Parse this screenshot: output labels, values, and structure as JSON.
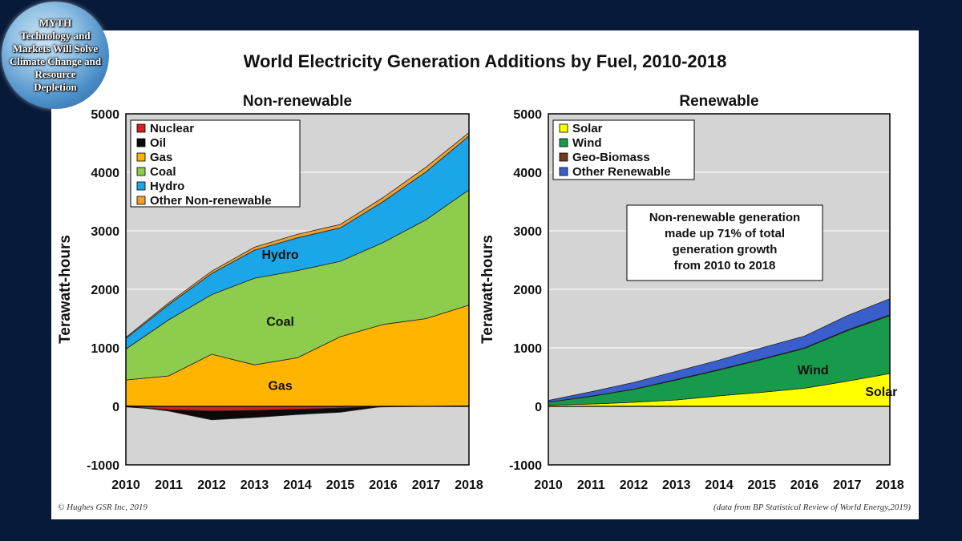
{
  "badge": {
    "lines": [
      "MYTH",
      "Technology and",
      "Markets Will Solve",
      "Climate Change and",
      "Resource",
      "Depletion"
    ]
  },
  "title": "World Electricity Generation Additions by Fuel, 2010-2018",
  "annotation": [
    "Non-renewable generation",
    "made up 71% of total",
    "generation growth",
    "from 2010 to 2018"
  ],
  "footer": {
    "left": "© Hughes GSR Inc, 2019",
    "right": "(data from BP Statistical Review of World Energy,2019)"
  },
  "colors": {
    "nuclear": "#d42020",
    "oil": "#0a0a0a",
    "gas": "#ffb400",
    "coal": "#8dcc4c",
    "hydro": "#1aa6e8",
    "other_nonrenewable": "#f0a030",
    "solar": "#ffff00",
    "wind": "#179a4c",
    "geo_biomass": "#6e3b1e",
    "other_renewable": "#3a5fcd",
    "plot_bg": "#d4d4d4"
  },
  "chart_data": [
    {
      "type": "area",
      "title": "Non-renewable",
      "ylabel": "Terawatt-hours",
      "xlabel": "",
      "x": [
        2010,
        2011,
        2012,
        2013,
        2014,
        2015,
        2016,
        2017,
        2018
      ],
      "ylim": [
        -1000,
        5000
      ],
      "yticks": [
        -1000,
        0,
        1000,
        2000,
        3000,
        4000,
        5000
      ],
      "grid": true,
      "legend_position": "top-left",
      "area_labels": [
        {
          "text": "Hydro",
          "x": 2013.6,
          "y": 2520
        },
        {
          "text": "Coal",
          "x": 2013.6,
          "y": 1380
        },
        {
          "text": "Gas",
          "x": 2013.6,
          "y": 280
        }
      ],
      "series": [
        {
          "name": "Nuclear",
          "key": "nuclear",
          "values": [
            -10,
            -60,
            -80,
            -70,
            -50,
            -30,
            -10,
            0,
            10
          ]
        },
        {
          "name": "Oil",
          "key": "oil",
          "values": [
            10,
            -20,
            -150,
            -120,
            -90,
            -70,
            0,
            0,
            0
          ]
        },
        {
          "name": "Gas",
          "key": "gas",
          "values": [
            440,
            520,
            890,
            710,
            830,
            1190,
            1400,
            1500,
            1720
          ]
        },
        {
          "name": "Coal",
          "key": "coal",
          "values": [
            530,
            960,
            1020,
            1480,
            1490,
            1290,
            1400,
            1690,
            1970
          ]
        },
        {
          "name": "Hydro",
          "key": "hydro",
          "values": [
            180,
            260,
            360,
            480,
            560,
            570,
            700,
            820,
            920
          ]
        },
        {
          "name": "Other Non-renewable",
          "key": "other_nonrenewable",
          "values": [
            20,
            30,
            40,
            50,
            60,
            60,
            70,
            80,
            60
          ]
        }
      ]
    },
    {
      "type": "area",
      "title": "Renewable",
      "ylabel": "Terawatt-hours",
      "xlabel": "",
      "x": [
        2010,
        2011,
        2012,
        2013,
        2014,
        2015,
        2016,
        2017,
        2018
      ],
      "ylim": [
        -1000,
        5000
      ],
      "yticks": [
        -1000,
        0,
        1000,
        2000,
        3000,
        4000,
        5000
      ],
      "grid": true,
      "legend_position": "top-left",
      "area_labels": [
        {
          "text": "Wind",
          "x": 2016.2,
          "y": 550
        },
        {
          "text": "Solar",
          "x": 2017.8,
          "y": 180
        }
      ],
      "series": [
        {
          "name": "Solar",
          "key": "solar",
          "values": [
            20,
            40,
            70,
            110,
            180,
            240,
            310,
            430,
            560
          ]
        },
        {
          "name": "Wind",
          "key": "wind",
          "values": [
            50,
            130,
            220,
            340,
            440,
            560,
            680,
            860,
            990
          ]
        },
        {
          "name": "Geo-Biomass",
          "key": "geo_biomass",
          "values": [
            0,
            5,
            5,
            10,
            10,
            10,
            10,
            15,
            15
          ]
        },
        {
          "name": "Other Renewable",
          "key": "other_renewable",
          "values": [
            30,
            75,
            115,
            140,
            160,
            190,
            200,
            245,
            275
          ]
        }
      ]
    }
  ]
}
